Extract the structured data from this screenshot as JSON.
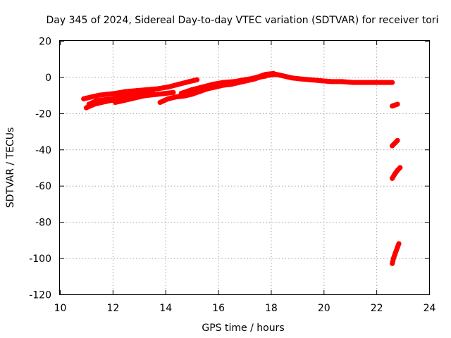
{
  "chart_data": {
    "type": "scatter",
    "title": "Day 345 of 2024, Sidereal Day-to-day VTEC variation (SDTVAR) for receiver tori",
    "xlabel": "GPS time / hours",
    "ylabel": "SDTVAR / TECUs",
    "xlim": [
      10,
      24
    ],
    "ylim": [
      -120,
      20
    ],
    "xticks": [
      10,
      12,
      14,
      16,
      18,
      20,
      22,
      24
    ],
    "yticks": [
      20,
      0,
      -20,
      -40,
      -60,
      -80,
      -100,
      -120
    ],
    "grid": true,
    "legend": "none",
    "color": "#ff0000",
    "series": [
      {
        "values": [
          [
            10.9,
            -12
          ],
          [
            11.2,
            -11
          ],
          [
            11.5,
            -10
          ],
          [
            11.8,
            -9.5
          ],
          [
            12.1,
            -9
          ],
          [
            12.5,
            -8
          ],
          [
            12.9,
            -7.5
          ],
          [
            13.3,
            -7
          ],
          [
            13.7,
            -6.5
          ],
          [
            14.1,
            -5.5
          ],
          [
            14.5,
            -4
          ],
          [
            14.9,
            -2.5
          ],
          [
            15.2,
            -1.5
          ]
        ]
      },
      {
        "values": [
          [
            11.0,
            -17
          ],
          [
            11.3,
            -15
          ],
          [
            11.6,
            -14
          ],
          [
            11.9,
            -13
          ],
          [
            12.2,
            -12.5
          ],
          [
            12.5,
            -12
          ],
          [
            12.8,
            -11
          ],
          [
            13.1,
            -10.5
          ],
          [
            13.4,
            -10
          ],
          [
            13.7,
            -9.5
          ],
          [
            14.0,
            -9
          ],
          [
            14.3,
            -8.5
          ]
        ]
      },
      {
        "values": [
          [
            11.1,
            -15
          ],
          [
            11.4,
            -13
          ],
          [
            11.7,
            -12.5
          ],
          [
            12.0,
            -12
          ],
          [
            12.3,
            -11
          ],
          [
            12.6,
            -10
          ],
          [
            12.9,
            -9.5
          ],
          [
            13.2,
            -9
          ],
          [
            13.5,
            -8
          ]
        ]
      },
      {
        "values": [
          [
            12.1,
            -14
          ],
          [
            12.4,
            -13
          ],
          [
            12.7,
            -12
          ],
          [
            13.0,
            -11
          ],
          [
            13.3,
            -10
          ],
          [
            13.6,
            -9.5
          ]
        ]
      },
      {
        "values": [
          [
            13.8,
            -14
          ],
          [
            14.1,
            -12
          ],
          [
            14.4,
            -11
          ],
          [
            14.7,
            -10.5
          ],
          [
            15.0,
            -9.5
          ],
          [
            15.3,
            -8
          ],
          [
            15.6,
            -6.5
          ],
          [
            15.9,
            -5.5
          ],
          [
            16.2,
            -4.5
          ],
          [
            16.5,
            -4
          ],
          [
            16.8,
            -3
          ],
          [
            17.1,
            -2
          ],
          [
            17.4,
            -1
          ],
          [
            17.7,
            0.5
          ],
          [
            17.9,
            1
          ],
          [
            18.2,
            1.5
          ],
          [
            18.5,
            0.5
          ],
          [
            18.8,
            -0.5
          ],
          [
            19.1,
            -1
          ],
          [
            19.5,
            -1.5
          ],
          [
            19.9,
            -2
          ],
          [
            20.3,
            -2.5
          ],
          [
            20.7,
            -2.5
          ],
          [
            21.1,
            -3
          ],
          [
            21.5,
            -3
          ],
          [
            21.9,
            -3
          ],
          [
            22.3,
            -3
          ],
          [
            22.6,
            -3
          ]
        ]
      },
      {
        "values": [
          [
            14.6,
            -9
          ],
          [
            15.0,
            -7
          ],
          [
            15.4,
            -5.5
          ],
          [
            15.8,
            -4
          ],
          [
            16.2,
            -3
          ],
          [
            16.6,
            -2.5
          ],
          [
            17.0,
            -1.5
          ],
          [
            17.4,
            -0.5
          ],
          [
            17.8,
            0.5
          ]
        ]
      },
      {
        "values": [
          [
            15.1,
            -8
          ],
          [
            15.5,
            -6.5
          ],
          [
            15.9,
            -5
          ],
          [
            16.3,
            -3.5
          ],
          [
            16.7,
            -2.5
          ],
          [
            17.1,
            -1.5
          ],
          [
            17.5,
            0
          ],
          [
            17.8,
            1.5
          ],
          [
            18.1,
            2
          ]
        ]
      },
      {
        "values": [
          [
            22.6,
            -16
          ],
          [
            22.7,
            -15.5
          ],
          [
            22.8,
            -15
          ]
        ]
      },
      {
        "values": [
          [
            22.6,
            -38
          ],
          [
            22.7,
            -36.5
          ],
          [
            22.8,
            -35
          ]
        ]
      },
      {
        "values": [
          [
            22.6,
            -56
          ],
          [
            22.7,
            -53.5
          ],
          [
            22.8,
            -51.5
          ],
          [
            22.9,
            -50
          ]
        ]
      },
      {
        "values": [
          [
            22.6,
            -103
          ],
          [
            22.65,
            -100
          ],
          [
            22.7,
            -98
          ],
          [
            22.75,
            -96
          ],
          [
            22.8,
            -94
          ],
          [
            22.85,
            -92
          ]
        ]
      }
    ]
  }
}
